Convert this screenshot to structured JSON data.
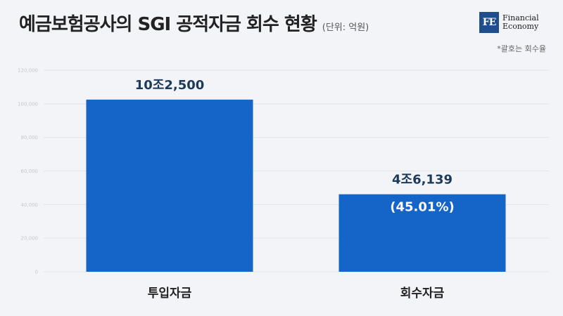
{
  "header": {
    "title": "예금보험공사의 SGI 공적자금 회수 현황",
    "unit": "(단위: 억원)",
    "note": "*괄호는 회수율"
  },
  "logo": {
    "mark": "FE",
    "line1": "Financial",
    "line2": "Economy"
  },
  "chart_data": {
    "type": "bar",
    "categories": [
      "투입자금",
      "회수자금"
    ],
    "values": [
      102500,
      46139
    ],
    "value_labels": [
      "10조2,500",
      "4조6,139"
    ],
    "sub_labels": [
      "",
      "(45.01%)"
    ],
    "ylim": [
      0,
      120000
    ],
    "yticks": [
      0,
      20000,
      40000,
      60000,
      80000,
      100000,
      120000
    ],
    "ytick_labels": [
      "0",
      "20,000",
      "40,000",
      "60,000",
      "80,000",
      "100,000",
      "120,000"
    ],
    "grid": true,
    "bar_color": "#1565c8"
  }
}
